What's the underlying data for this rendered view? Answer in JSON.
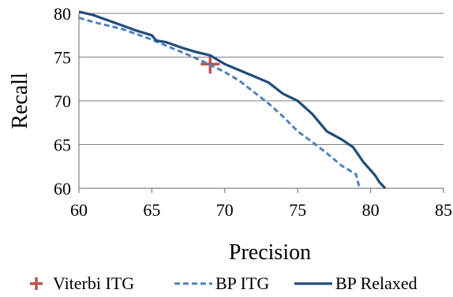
{
  "chart_data": {
    "type": "line",
    "xlabel": "Precision",
    "ylabel": "Recall",
    "xlim": [
      60,
      85
    ],
    "ylim": [
      60,
      80
    ],
    "x_ticks": [
      "60",
      "65",
      "70",
      "75",
      "80",
      "85"
    ],
    "y_ticks": [
      "60",
      "65",
      "70",
      "75",
      "80"
    ],
    "grid": "horizontal",
    "legend_position": "bottom",
    "series": [
      {
        "name": "Viterbi ITG",
        "style": "marker-plus",
        "color": "#C0504D",
        "points": [
          [
            69.0,
            74.2
          ]
        ]
      },
      {
        "name": "BP ITG",
        "style": "dashed",
        "color": "#4F81BD",
        "points": [
          [
            60.0,
            79.5
          ],
          [
            61.0,
            79.0
          ],
          [
            62.0,
            78.6
          ],
          [
            63.0,
            78.2
          ],
          [
            64.0,
            77.6
          ],
          [
            65.0,
            77.0
          ],
          [
            66.0,
            76.3
          ],
          [
            67.0,
            75.6
          ],
          [
            68.0,
            74.9
          ],
          [
            69.0,
            74.1
          ],
          [
            70.0,
            73.3
          ],
          [
            71.0,
            72.3
          ],
          [
            72.0,
            71.0
          ],
          [
            73.0,
            69.7
          ],
          [
            74.0,
            68.2
          ],
          [
            75.0,
            66.5
          ],
          [
            76.0,
            65.3
          ],
          [
            77.0,
            64.0
          ],
          [
            78.0,
            62.6
          ],
          [
            79.0,
            61.6
          ],
          [
            79.2,
            60.3
          ],
          [
            79.3,
            60.0
          ]
        ]
      },
      {
        "name": "BP Relaxed",
        "style": "solid",
        "color": "#1F4E79",
        "points": [
          [
            60.0,
            80.2
          ],
          [
            61.0,
            79.8
          ],
          [
            62.0,
            79.2
          ],
          [
            63.0,
            78.6
          ],
          [
            64.0,
            78.0
          ],
          [
            65.0,
            77.5
          ],
          [
            65.3,
            76.9
          ],
          [
            66.0,
            76.7
          ],
          [
            67.0,
            76.1
          ],
          [
            68.0,
            75.6
          ],
          [
            69.0,
            75.2
          ],
          [
            70.0,
            74.2
          ],
          [
            71.0,
            73.5
          ],
          [
            72.0,
            72.8
          ],
          [
            73.0,
            72.1
          ],
          [
            74.0,
            70.8
          ],
          [
            75.0,
            70.0
          ],
          [
            76.0,
            68.5
          ],
          [
            77.0,
            66.5
          ],
          [
            78.0,
            65.6
          ],
          [
            78.8,
            64.7
          ],
          [
            79.5,
            63.0
          ],
          [
            80.3,
            61.5
          ],
          [
            80.6,
            60.7
          ],
          [
            81.0,
            60.0
          ]
        ]
      }
    ]
  }
}
